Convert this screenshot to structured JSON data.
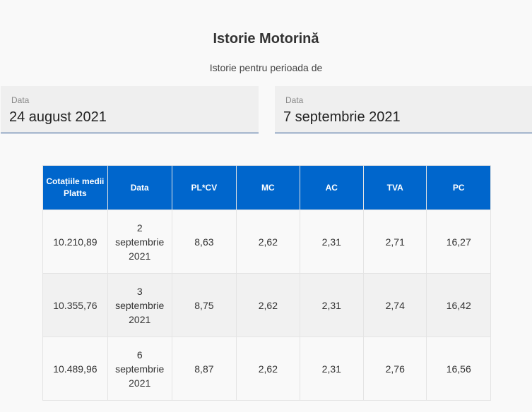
{
  "header": {
    "title": "Istorie Motorină",
    "subtitle": "Istorie pentru perioada de"
  },
  "range": {
    "from": {
      "label": "Data",
      "value": "24 august 2021"
    },
    "to": {
      "label": "Data",
      "value": "7 septembrie 2021"
    }
  },
  "table": {
    "columns": [
      "Cotațiile medii Platts",
      "Data",
      "PL*CV",
      "MC",
      "AC",
      "TVA",
      "PC"
    ],
    "rows": [
      {
        "platts": "10.210,89",
        "date": [
          "2",
          "septembrie",
          "2021"
        ],
        "plcv": "8,63",
        "mc": "2,62",
        "ac": "2,31",
        "tva": "2,71",
        "pc": "16,27"
      },
      {
        "platts": "10.355,76",
        "date": [
          "3",
          "septembrie",
          "2021"
        ],
        "plcv": "8,75",
        "mc": "2,62",
        "ac": "2,31",
        "tva": "2,74",
        "pc": "16,42"
      },
      {
        "platts": "10.489,96",
        "date": [
          "6",
          "septembrie",
          "2021"
        ],
        "plcv": "8,87",
        "mc": "2,62",
        "ac": "2,31",
        "tva": "2,76",
        "pc": "16,56"
      }
    ]
  },
  "colors": {
    "header_bg": "#0066cc",
    "accent_line": "#1f4e8c"
  }
}
